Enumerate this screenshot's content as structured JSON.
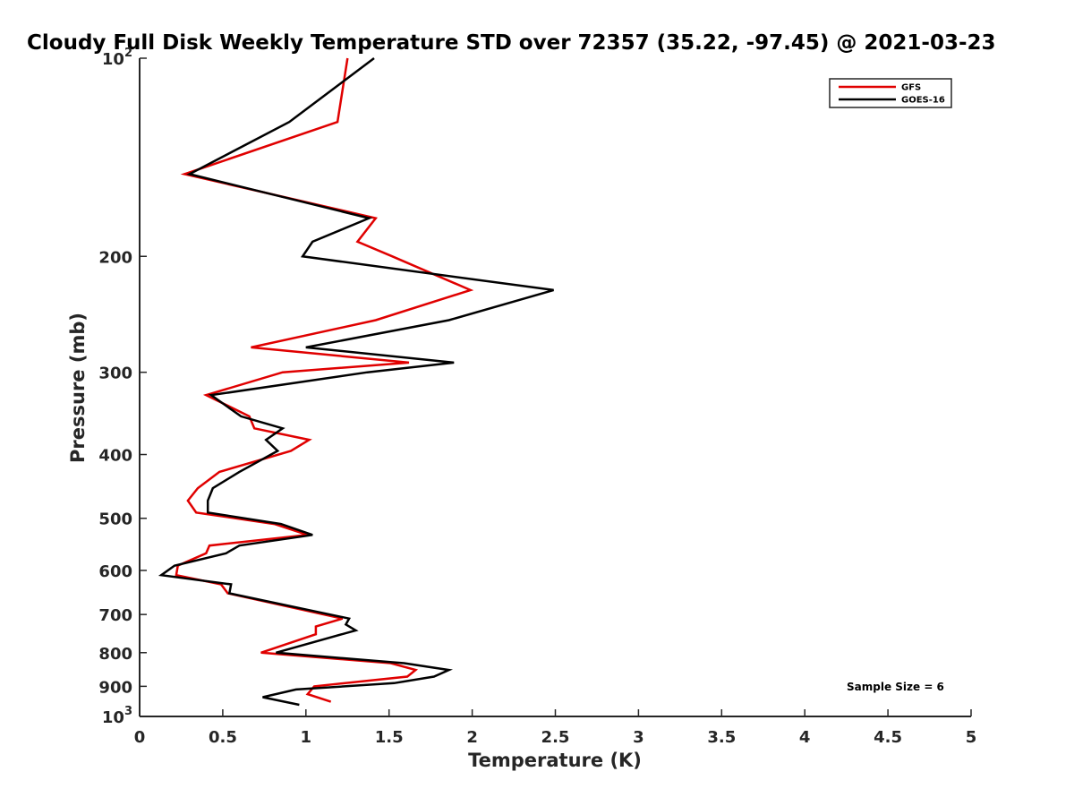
{
  "chart_data": {
    "type": "line",
    "title": "Cloudy Full Disk Weekly Temperature STD over 72357 (35.22, -97.45) @ 2021-03-23",
    "xlabel": "Temperature (K)",
    "ylabel": "Pressure (mb)",
    "xlim": [
      0,
      5
    ],
    "ylim": [
      1000,
      100
    ],
    "y_scale": "log",
    "y_reversed": true,
    "grid": false,
    "legend_position": "top-right",
    "x_ticks": [
      "0",
      "0.5",
      "1",
      "1.5",
      "2",
      "2.5",
      "3",
      "3.5",
      "4",
      "4.5",
      "5"
    ],
    "x_tick_values": [
      0,
      0.5,
      1,
      1.5,
      2,
      2.5,
      3,
      3.5,
      4,
      4.5,
      5
    ],
    "y_ticks": [
      {
        "value": 100,
        "base": "10",
        "exp": "2"
      },
      {
        "value": 200,
        "base": "200",
        "exp": ""
      },
      {
        "value": 300,
        "base": "300",
        "exp": ""
      },
      {
        "value": 400,
        "base": "400",
        "exp": ""
      },
      {
        "value": 500,
        "base": "500",
        "exp": ""
      },
      {
        "value": 600,
        "base": "600",
        "exp": ""
      },
      {
        "value": 700,
        "base": "700",
        "exp": ""
      },
      {
        "value": 800,
        "base": "800",
        "exp": ""
      },
      {
        "value": 900,
        "base": "900",
        "exp": ""
      },
      {
        "value": 1000,
        "base": "10",
        "exp": "3"
      }
    ],
    "series": [
      {
        "name": "GFS",
        "color": "#e00000",
        "points": [
          {
            "x": 1.25,
            "y": 100
          },
          {
            "x": 1.19,
            "y": 125
          },
          {
            "x": 0.27,
            "y": 150
          },
          {
            "x": 1.42,
            "y": 175
          },
          {
            "x": 1.31,
            "y": 190
          },
          {
            "x": 1.52,
            "y": 200
          },
          {
            "x": 1.99,
            "y": 225
          },
          {
            "x": 1.42,
            "y": 250
          },
          {
            "x": 0.67,
            "y": 275
          },
          {
            "x": 1.62,
            "y": 290
          },
          {
            "x": 0.86,
            "y": 300
          },
          {
            "x": 0.4,
            "y": 325
          },
          {
            "x": 0.66,
            "y": 350
          },
          {
            "x": 0.69,
            "y": 365
          },
          {
            "x": 1.02,
            "y": 380
          },
          {
            "x": 0.91,
            "y": 395
          },
          {
            "x": 0.48,
            "y": 425
          },
          {
            "x": 0.35,
            "y": 450
          },
          {
            "x": 0.29,
            "y": 470
          },
          {
            "x": 0.34,
            "y": 490
          },
          {
            "x": 0.81,
            "y": 510
          },
          {
            "x": 1.01,
            "y": 530
          },
          {
            "x": 0.42,
            "y": 550
          },
          {
            "x": 0.4,
            "y": 565
          },
          {
            "x": 0.23,
            "y": 590
          },
          {
            "x": 0.22,
            "y": 610
          },
          {
            "x": 0.49,
            "y": 630
          },
          {
            "x": 0.53,
            "y": 650
          },
          {
            "x": 1.22,
            "y": 710
          },
          {
            "x": 1.06,
            "y": 730
          },
          {
            "x": 1.06,
            "y": 750
          },
          {
            "x": 0.73,
            "y": 800
          },
          {
            "x": 1.51,
            "y": 830
          },
          {
            "x": 1.66,
            "y": 850
          },
          {
            "x": 1.61,
            "y": 870
          },
          {
            "x": 1.05,
            "y": 900
          },
          {
            "x": 1.01,
            "y": 925
          },
          {
            "x": 1.15,
            "y": 950
          }
        ]
      },
      {
        "name": "GOES-16",
        "color": "#000000",
        "points": [
          {
            "x": 1.41,
            "y": 100
          },
          {
            "x": 0.9,
            "y": 125
          },
          {
            "x": 0.3,
            "y": 150
          },
          {
            "x": 1.38,
            "y": 175
          },
          {
            "x": 1.04,
            "y": 190
          },
          {
            "x": 0.98,
            "y": 200
          },
          {
            "x": 2.49,
            "y": 225
          },
          {
            "x": 1.86,
            "y": 250
          },
          {
            "x": 1.0,
            "y": 275
          },
          {
            "x": 1.89,
            "y": 290
          },
          {
            "x": 1.37,
            "y": 300
          },
          {
            "x": 0.43,
            "y": 325
          },
          {
            "x": 0.61,
            "y": 350
          },
          {
            "x": 0.86,
            "y": 365
          },
          {
            "x": 0.76,
            "y": 380
          },
          {
            "x": 0.83,
            "y": 395
          },
          {
            "x": 0.6,
            "y": 425
          },
          {
            "x": 0.44,
            "y": 450
          },
          {
            "x": 0.41,
            "y": 470
          },
          {
            "x": 0.41,
            "y": 490
          },
          {
            "x": 0.85,
            "y": 510
          },
          {
            "x": 1.04,
            "y": 530
          },
          {
            "x": 0.6,
            "y": 550
          },
          {
            "x": 0.52,
            "y": 565
          },
          {
            "x": 0.21,
            "y": 590
          },
          {
            "x": 0.13,
            "y": 610
          },
          {
            "x": 0.55,
            "y": 630
          },
          {
            "x": 0.54,
            "y": 650
          },
          {
            "x": 1.26,
            "y": 710
          },
          {
            "x": 1.24,
            "y": 725
          },
          {
            "x": 1.3,
            "y": 740
          },
          {
            "x": 0.82,
            "y": 800
          },
          {
            "x": 1.59,
            "y": 830
          },
          {
            "x": 1.86,
            "y": 850
          },
          {
            "x": 1.77,
            "y": 870
          },
          {
            "x": 1.53,
            "y": 890
          },
          {
            "x": 0.94,
            "y": 910
          },
          {
            "x": 0.74,
            "y": 935
          },
          {
            "x": 0.96,
            "y": 960
          }
        ]
      }
    ],
    "legend": [
      {
        "label": "GFS",
        "color": "#e00000"
      },
      {
        "label": "GOES-16",
        "color": "#000000"
      }
    ],
    "annotation": "Sample Size = 6"
  }
}
